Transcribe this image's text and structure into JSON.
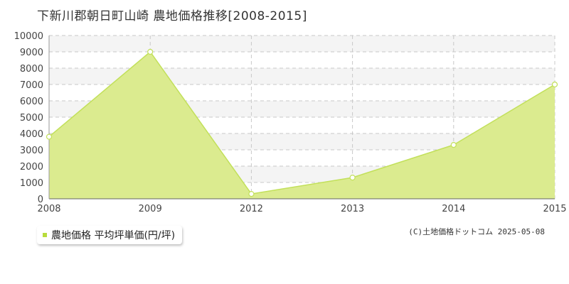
{
  "title": "下新川郡朝日町山崎 農地価格推移[2008-2015]",
  "legend": {
    "label": "農地価格 平均坪単価(円/坪)"
  },
  "copyright": "(C)土地価格ドットコム 2025-05-08",
  "colors": {
    "area_fill": "#dbeb8f",
    "line": "#c2e05a",
    "marker_fill": "#ffffff",
    "legend_swatch": "#b8dc3c",
    "grid": "#c8c8c8",
    "band": "#f4f4f4"
  },
  "chart_data": {
    "type": "area",
    "x": [
      "2008",
      "2009",
      "2012",
      "2013",
      "2014",
      "2015"
    ],
    "series": [
      {
        "name": "農地価格 平均坪単価(円/坪)",
        "values": [
          3800,
          9000,
          300,
          1300,
          3300,
          7000
        ]
      }
    ],
    "ylim": [
      0,
      10000
    ],
    "yticks": [
      0,
      1000,
      2000,
      3000,
      4000,
      5000,
      6000,
      7000,
      8000,
      9000,
      10000
    ],
    "grid": true,
    "legend_position": "bottom-left"
  }
}
